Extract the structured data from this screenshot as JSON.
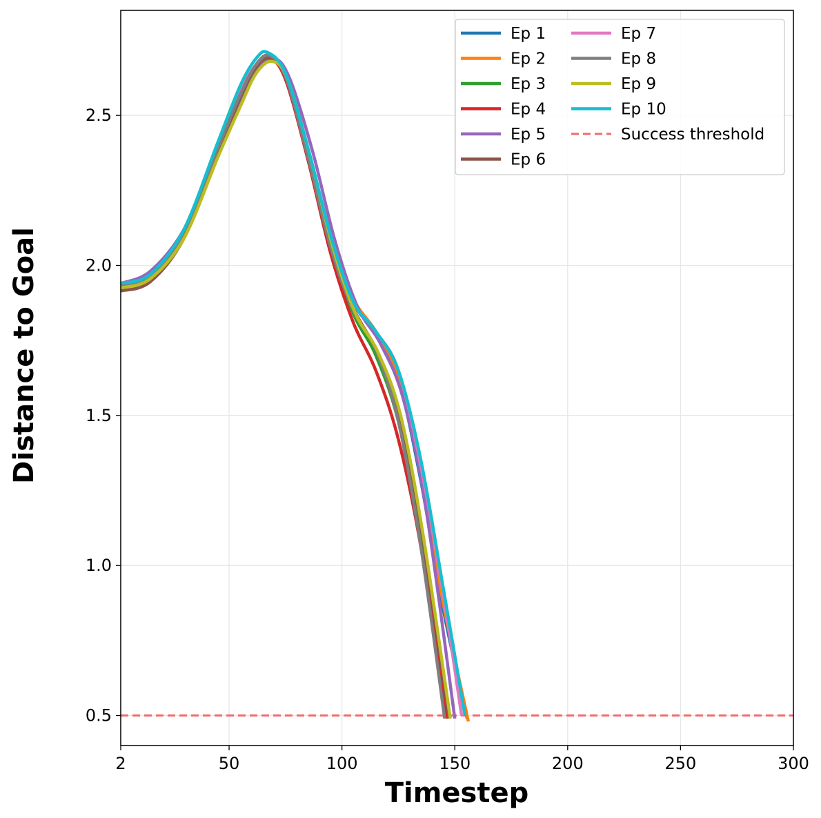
{
  "chart_data": {
    "type": "line",
    "title": "",
    "xlabel": "Timestep",
    "ylabel": "Distance to Goal",
    "xlim": [
      2,
      300
    ],
    "ylim": [
      0.4,
      2.85
    ],
    "x_ticks": [
      2,
      50,
      100,
      150,
      200,
      250,
      300
    ],
    "x_tick_labels": [
      "2",
      "50",
      "100",
      "150",
      "200",
      "250",
      "300"
    ],
    "y_ticks": [
      0.5,
      1.0,
      1.5,
      2.0,
      2.5
    ],
    "y_tick_labels": [
      "0.5",
      "1.0",
      "1.5",
      "2.0",
      "2.5"
    ],
    "grid": true,
    "legend_position": "top-right",
    "legend_columns": 2,
    "threshold": {
      "name": "Success threshold",
      "y": 0.5,
      "color": "#f26b6b",
      "style": "dashed"
    },
    "series": [
      {
        "name": "Ep 1",
        "color": "#1f77b4",
        "points": [
          [
            2,
            1.93
          ],
          [
            15,
            1.96
          ],
          [
            30,
            2.1
          ],
          [
            45,
            2.38
          ],
          [
            55,
            2.56
          ],
          [
            62,
            2.66
          ],
          [
            68,
            2.69
          ],
          [
            75,
            2.63
          ],
          [
            85,
            2.38
          ],
          [
            95,
            2.1
          ],
          [
            105,
            1.88
          ],
          [
            115,
            1.77
          ],
          [
            125,
            1.62
          ],
          [
            135,
            1.28
          ],
          [
            145,
            0.85
          ],
          [
            155.5,
            0.49
          ]
        ]
      },
      {
        "name": "Ep 2",
        "color": "#ff7f0e",
        "points": [
          [
            2,
            1.93
          ],
          [
            15,
            1.96
          ],
          [
            30,
            2.1
          ],
          [
            45,
            2.38
          ],
          [
            55,
            2.56
          ],
          [
            62,
            2.66
          ],
          [
            68,
            2.69
          ],
          [
            75,
            2.63
          ],
          [
            85,
            2.38
          ],
          [
            95,
            2.1
          ],
          [
            105,
            1.89
          ],
          [
            115,
            1.78
          ],
          [
            125,
            1.63
          ],
          [
            135,
            1.3
          ],
          [
            145,
            0.87
          ],
          [
            156,
            0.48
          ]
        ]
      },
      {
        "name": "Ep 3",
        "color": "#2ca02c",
        "points": [
          [
            2,
            1.93
          ],
          [
            15,
            1.96
          ],
          [
            30,
            2.1
          ],
          [
            45,
            2.38
          ],
          [
            55,
            2.56
          ],
          [
            62,
            2.66
          ],
          [
            68,
            2.69
          ],
          [
            75,
            2.62
          ],
          [
            85,
            2.36
          ],
          [
            95,
            2.06
          ],
          [
            105,
            1.84
          ],
          [
            115,
            1.7
          ],
          [
            125,
            1.48
          ],
          [
            135,
            1.1
          ],
          [
            147,
            0.49
          ]
        ]
      },
      {
        "name": "Ep 4",
        "color": "#d62728",
        "points": [
          [
            2,
            1.93
          ],
          [
            15,
            1.96
          ],
          [
            30,
            2.1
          ],
          [
            45,
            2.38
          ],
          [
            55,
            2.56
          ],
          [
            62,
            2.66
          ],
          [
            68,
            2.69
          ],
          [
            75,
            2.62
          ],
          [
            85,
            2.35
          ],
          [
            95,
            2.04
          ],
          [
            105,
            1.81
          ],
          [
            115,
            1.65
          ],
          [
            125,
            1.42
          ],
          [
            135,
            1.06
          ],
          [
            146.5,
            0.49
          ]
        ]
      },
      {
        "name": "Ep 5",
        "color": "#9467bd",
        "points": [
          [
            2,
            1.94
          ],
          [
            15,
            1.98
          ],
          [
            30,
            2.12
          ],
          [
            45,
            2.38
          ],
          [
            55,
            2.55
          ],
          [
            62,
            2.65
          ],
          [
            70,
            2.69
          ],
          [
            77,
            2.62
          ],
          [
            87,
            2.38
          ],
          [
            97,
            2.08
          ],
          [
            107,
            1.86
          ],
          [
            117,
            1.74
          ],
          [
            127,
            1.56
          ],
          [
            137,
            1.2
          ],
          [
            150,
            0.49
          ]
        ]
      },
      {
        "name": "Ep 6",
        "color": "#8c564b",
        "points": [
          [
            2,
            1.915
          ],
          [
            15,
            1.945
          ],
          [
            30,
            2.09
          ],
          [
            45,
            2.37
          ],
          [
            55,
            2.56
          ],
          [
            62,
            2.66
          ],
          [
            68,
            2.69
          ],
          [
            75,
            2.63
          ],
          [
            85,
            2.37
          ],
          [
            95,
            2.08
          ],
          [
            105,
            1.86
          ],
          [
            115,
            1.72
          ],
          [
            125,
            1.52
          ],
          [
            135,
            1.13
          ],
          [
            147.5,
            0.49
          ]
        ]
      },
      {
        "name": "Ep 7",
        "color": "#e377c2",
        "points": [
          [
            2,
            1.93
          ],
          [
            15,
            1.96
          ],
          [
            30,
            2.11
          ],
          [
            45,
            2.4
          ],
          [
            55,
            2.58
          ],
          [
            62,
            2.67
          ],
          [
            68,
            2.7
          ],
          [
            75,
            2.63
          ],
          [
            85,
            2.38
          ],
          [
            95,
            2.1
          ],
          [
            105,
            1.88
          ],
          [
            115,
            1.78
          ],
          [
            125,
            1.65
          ],
          [
            135,
            1.33
          ],
          [
            145,
            0.9
          ],
          [
            153,
            0.5
          ]
        ]
      },
      {
        "name": "Ep 8",
        "color": "#7f7f7f",
        "points": [
          [
            2,
            1.93
          ],
          [
            15,
            1.96
          ],
          [
            30,
            2.11
          ],
          [
            45,
            2.39
          ],
          [
            55,
            2.57
          ],
          [
            62,
            2.67
          ],
          [
            68,
            2.7
          ],
          [
            75,
            2.63
          ],
          [
            85,
            2.36
          ],
          [
            95,
            2.06
          ],
          [
            105,
            1.85
          ],
          [
            115,
            1.72
          ],
          [
            125,
            1.48
          ],
          [
            135,
            1.06
          ],
          [
            145.5,
            0.49
          ]
        ]
      },
      {
        "name": "Ep 9",
        "color": "#bcbd22",
        "points": [
          [
            2,
            1.925
          ],
          [
            15,
            1.955
          ],
          [
            30,
            2.09
          ],
          [
            45,
            2.36
          ],
          [
            55,
            2.53
          ],
          [
            62,
            2.64
          ],
          [
            69,
            2.68
          ],
          [
            76,
            2.62
          ],
          [
            86,
            2.36
          ],
          [
            96,
            2.06
          ],
          [
            106,
            1.84
          ],
          [
            116,
            1.71
          ],
          [
            126,
            1.5
          ],
          [
            136,
            1.1
          ],
          [
            148,
            0.49
          ]
        ]
      },
      {
        "name": "Ep 10",
        "color": "#17becf",
        "points": [
          [
            2,
            1.94
          ],
          [
            15,
            1.97
          ],
          [
            30,
            2.12
          ],
          [
            45,
            2.41
          ],
          [
            55,
            2.6
          ],
          [
            62,
            2.69
          ],
          [
            67,
            2.71
          ],
          [
            75,
            2.64
          ],
          [
            85,
            2.39
          ],
          [
            95,
            2.1
          ],
          [
            105,
            1.88
          ],
          [
            115,
            1.78
          ],
          [
            125,
            1.65
          ],
          [
            135,
            1.35
          ],
          [
            145,
            0.92
          ],
          [
            154.5,
            0.5
          ]
        ]
      }
    ]
  }
}
